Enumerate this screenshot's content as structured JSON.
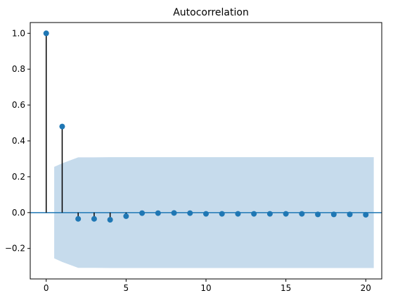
{
  "chart_data": {
    "type": "scatter",
    "title": "Autocorrelation",
    "xlabel": "",
    "ylabel": "",
    "xlim": [
      -1,
      21
    ],
    "ylim": [
      -0.37,
      1.06
    ],
    "grid": false,
    "x_ticks": [
      0,
      5,
      10,
      15,
      20
    ],
    "y_ticks": [
      -0.2,
      0.0,
      0.2,
      0.4,
      0.6,
      0.8,
      1.0
    ],
    "x_tick_labels": [
      "0",
      "5",
      "10",
      "15",
      "20"
    ],
    "y_tick_labels": [
      "−0.2",
      "0.0",
      "0.2",
      "0.4",
      "0.6",
      "0.8",
      "1.0"
    ],
    "series": [
      {
        "lags": [
          0,
          1,
          2,
          3,
          4,
          5,
          6,
          7,
          8,
          9,
          10,
          11,
          12,
          13,
          14,
          15,
          16,
          17,
          18,
          19,
          20
        ],
        "values": [
          1.0,
          0.48,
          -0.035,
          -0.035,
          -0.04,
          -0.02,
          -0.003,
          -0.003,
          -0.002,
          -0.003,
          -0.007,
          -0.007,
          -0.007,
          -0.007,
          -0.007,
          -0.007,
          -0.007,
          -0.01,
          -0.01,
          -0.01,
          -0.012
        ]
      }
    ],
    "confidence_band": {
      "lags": [
        0.5,
        1,
        2,
        3,
        4,
        5,
        6,
        7,
        8,
        9,
        10,
        11,
        12,
        13,
        14,
        15,
        16,
        17,
        18,
        19,
        20,
        20.5
      ],
      "upper": [
        0.255,
        0.275,
        0.308,
        0.308,
        0.309,
        0.309,
        0.309,
        0.309,
        0.309,
        0.309,
        0.309,
        0.309,
        0.309,
        0.309,
        0.309,
        0.309,
        0.309,
        0.309,
        0.309,
        0.309,
        0.309,
        0.309
      ],
      "lower": [
        -0.255,
        -0.275,
        -0.308,
        -0.308,
        -0.309,
        -0.309,
        -0.309,
        -0.309,
        -0.309,
        -0.309,
        -0.309,
        -0.309,
        -0.309,
        -0.309,
        -0.309,
        -0.309,
        -0.309,
        -0.309,
        -0.309,
        -0.309,
        -0.309,
        -0.309
      ]
    },
    "colors": {
      "marker": "#1f77b4",
      "stem": "#000000",
      "baseline": "#1f77b4",
      "band": "#c6dbec"
    }
  }
}
